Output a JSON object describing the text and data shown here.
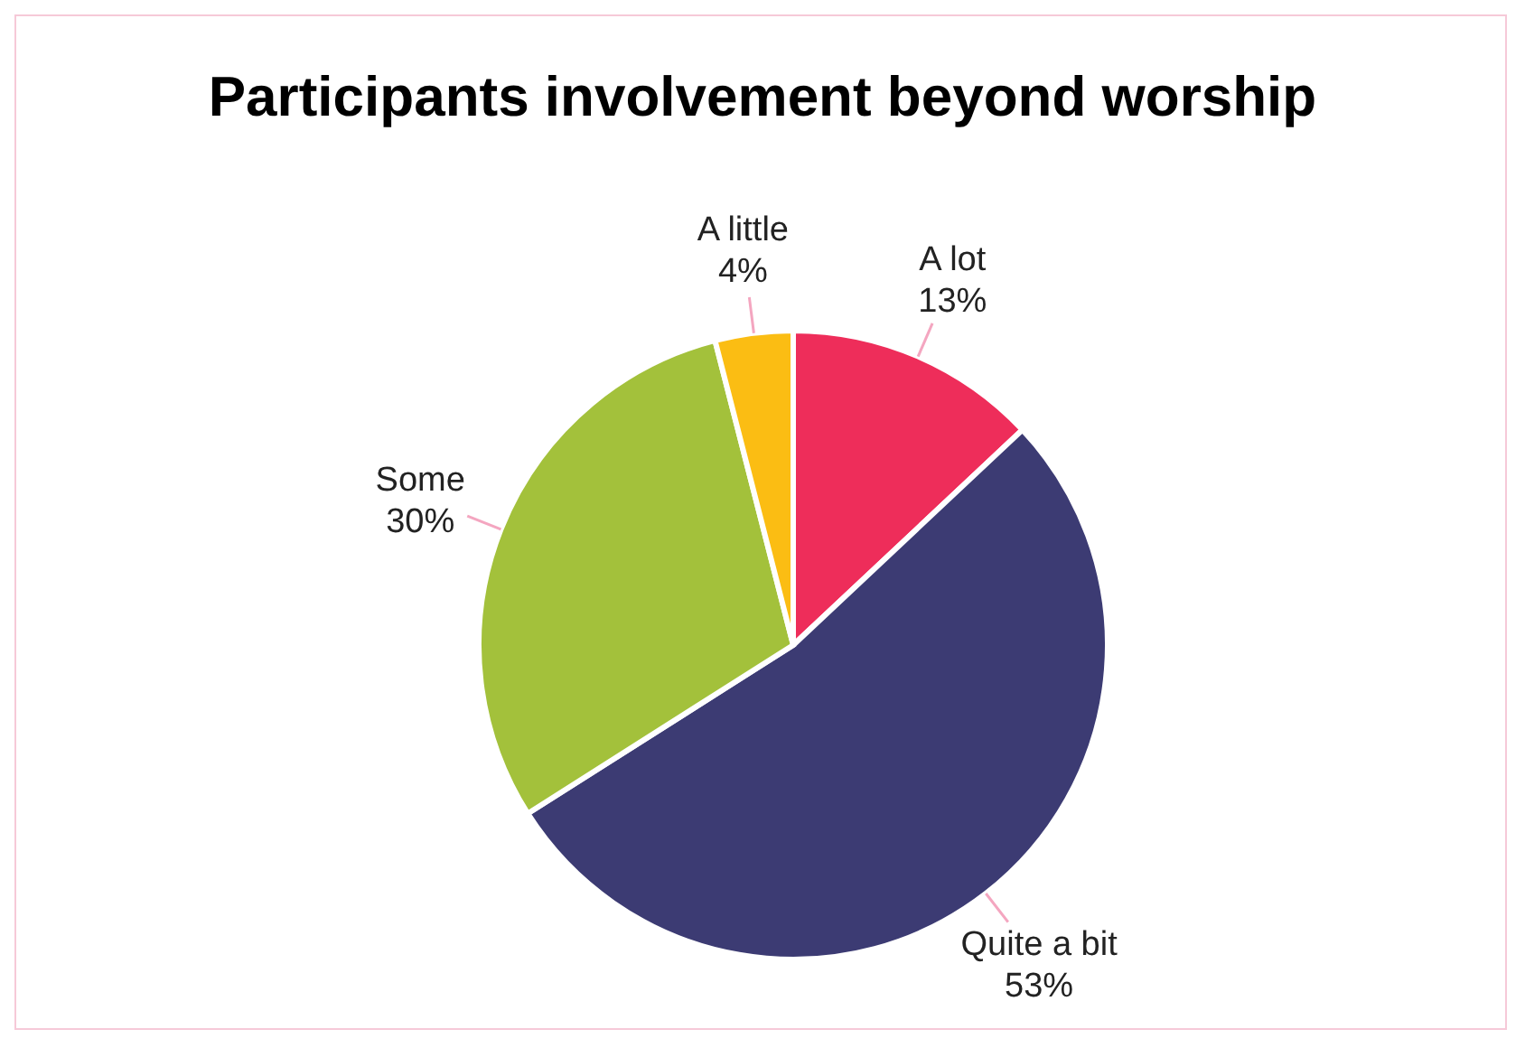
{
  "chart_data": {
    "type": "pie",
    "title": "Participants involvement beyond worship",
    "categories": [
      "A lot",
      "Quite a bit",
      "Some",
      "A little"
    ],
    "values": [
      13,
      53,
      30,
      4
    ],
    "value_labels": [
      "13%",
      "53%",
      "30%",
      "4%"
    ],
    "colors": [
      "#ee2d5a",
      "#3c3b73",
      "#a3c13b",
      "#fbbd13"
    ],
    "legend": false
  }
}
